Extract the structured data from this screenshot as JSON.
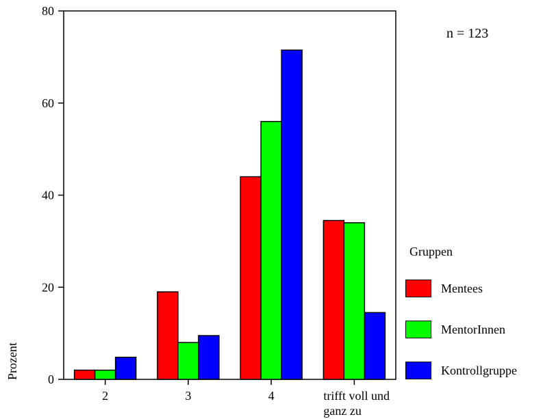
{
  "chart_data": {
    "type": "bar",
    "title": "",
    "xlabel": "",
    "ylabel": "Prozent",
    "ylim": [
      0,
      80
    ],
    "yticks": [
      "0",
      "20",
      "40",
      "60",
      "80"
    ],
    "categories": [
      "2",
      "3",
      "4",
      "trifft voll und ganz zu"
    ],
    "series": [
      {
        "name": "Mentees",
        "color": "#ff0000",
        "values": [
          2,
          19,
          44,
          34.5
        ]
      },
      {
        "name": "MentorInnen",
        "color": "#00ff00",
        "values": [
          2,
          8,
          56,
          34
        ]
      },
      {
        "name": "Kontrollgruppe",
        "color": "#0000ff",
        "values": [
          4.8,
          9.5,
          71.5,
          14.5
        ]
      }
    ],
    "annotation": "n = 123",
    "legend": {
      "title": "Gruppen",
      "position": "right"
    },
    "grid": false
  }
}
